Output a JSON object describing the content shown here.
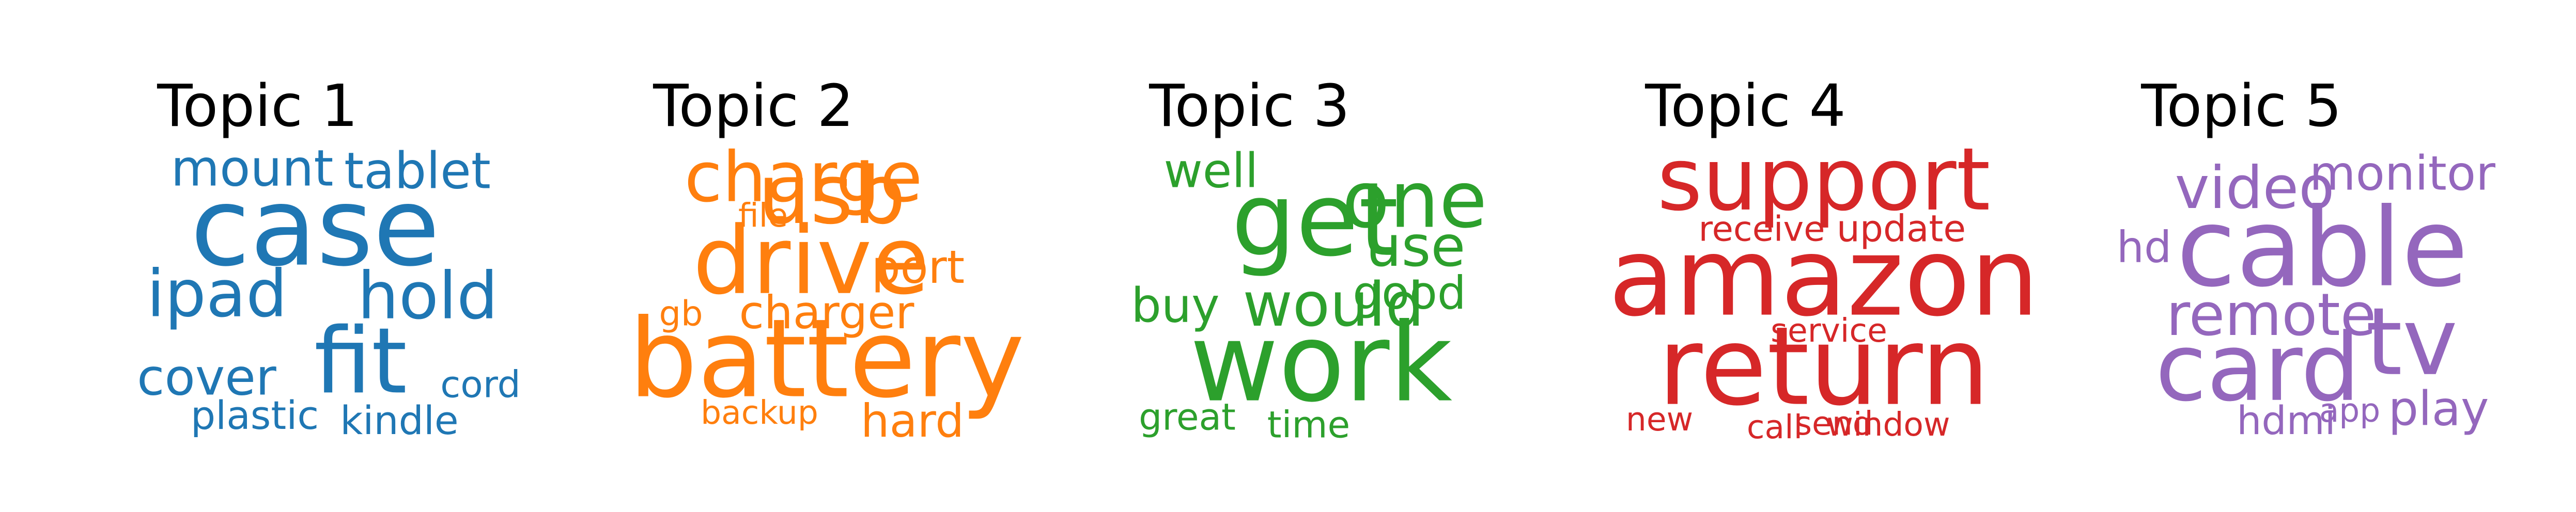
{
  "chart_data": [
    {
      "type": "wordcloud",
      "title": "Topic 1",
      "color": "#1f77b4",
      "words": [
        {
          "text": "case",
          "weight": 1.0
        },
        {
          "text": "fit",
          "weight": 0.84
        },
        {
          "text": "hold",
          "weight": 0.6
        },
        {
          "text": "ipad",
          "weight": 0.6
        },
        {
          "text": "tablet",
          "weight": 0.46
        },
        {
          "text": "mount",
          "weight": 0.46
        },
        {
          "text": "cover",
          "weight": 0.46
        },
        {
          "text": "cord",
          "weight": 0.34
        },
        {
          "text": "plastic",
          "weight": 0.36
        },
        {
          "text": "kindle",
          "weight": 0.36
        }
      ]
    },
    {
      "type": "wordcloud",
      "title": "Topic 2",
      "color": "#ff7f0e",
      "words": [
        {
          "text": "battery",
          "weight": 1.0
        },
        {
          "text": "drive",
          "weight": 0.86
        },
        {
          "text": "usb",
          "weight": 0.76
        },
        {
          "text": "charge",
          "weight": 0.64
        },
        {
          "text": "charger",
          "weight": 0.42
        },
        {
          "text": "port",
          "weight": 0.42
        },
        {
          "text": "hard",
          "weight": 0.42
        },
        {
          "text": "file",
          "weight": 0.3
        },
        {
          "text": "gb",
          "weight": 0.32
        },
        {
          "text": "backup",
          "weight": 0.3
        }
      ]
    },
    {
      "type": "wordcloud",
      "title": "Topic 3",
      "color": "#2ca02c",
      "words": [
        {
          "text": "work",
          "weight": 1.0
        },
        {
          "text": "get",
          "weight": 0.94
        },
        {
          "text": "one",
          "weight": 0.72
        },
        {
          "text": "would",
          "weight": 0.56
        },
        {
          "text": "use",
          "weight": 0.52
        },
        {
          "text": "good",
          "weight": 0.42
        },
        {
          "text": "well",
          "weight": 0.44
        },
        {
          "text": "buy",
          "weight": 0.44
        },
        {
          "text": "great",
          "weight": 0.34
        },
        {
          "text": "time",
          "weight": 0.34
        }
      ]
    },
    {
      "type": "wordcloud",
      "title": "Topic 4",
      "color": "#d62728",
      "words": [
        {
          "text": "amazon",
          "weight": 1.0
        },
        {
          "text": "return",
          "weight": 1.0
        },
        {
          "text": "support",
          "weight": 0.8
        },
        {
          "text": "update",
          "weight": 0.34
        },
        {
          "text": "receive",
          "weight": 0.32
        },
        {
          "text": "service",
          "weight": 0.3
        },
        {
          "text": "window",
          "weight": 0.3
        },
        {
          "text": "new",
          "weight": 0.3
        },
        {
          "text": "call",
          "weight": 0.3
        },
        {
          "text": "send",
          "weight": 0.3
        }
      ]
    },
    {
      "type": "wordcloud",
      "title": "Topic 5",
      "color": "#9467bd",
      "words": [
        {
          "text": "cable",
          "weight": 1.0
        },
        {
          "text": "card",
          "weight": 0.86
        },
        {
          "text": "tv",
          "weight": 0.86
        },
        {
          "text": "video",
          "weight": 0.54
        },
        {
          "text": "remote",
          "weight": 0.54
        },
        {
          "text": "monitor",
          "weight": 0.44
        },
        {
          "text": "play",
          "weight": 0.44
        },
        {
          "text": "hd",
          "weight": 0.4
        },
        {
          "text": "hdmi",
          "weight": 0.36
        },
        {
          "text": "app",
          "weight": 0.3
        }
      ]
    }
  ]
}
